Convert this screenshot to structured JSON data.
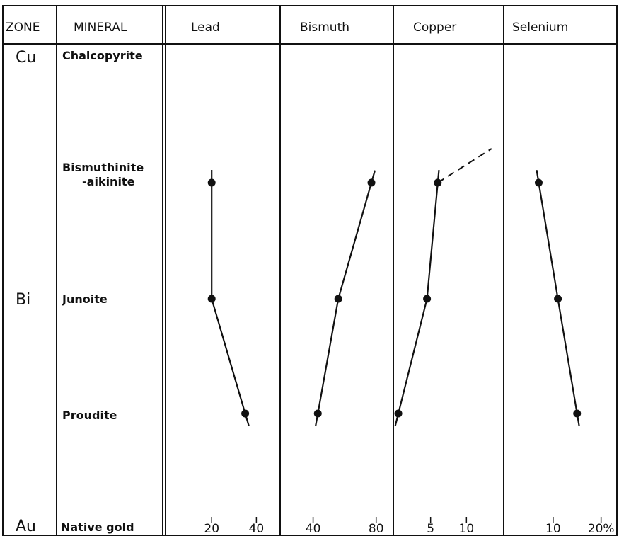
{
  "headers": {
    "zone": "ZONE",
    "mineral": "MINERAL",
    "panels": [
      "Lead",
      "Bismuth",
      "Copper",
      "Selenium"
    ]
  },
  "zones": [
    "Cu",
    "Bi",
    "Au"
  ],
  "minerals": [
    "Chalcopyrite",
    "Bismuthinite",
    "-aikinite",
    "Junoite",
    "Proudite",
    "Native gold"
  ],
  "chart_data": [
    {
      "type": "line",
      "panel": "Lead",
      "categories": [
        "Bismuthinite-aikinite",
        "Junoite",
        "Proudite"
      ],
      "values": [
        20,
        20,
        35
      ],
      "xlim": [
        0,
        50
      ],
      "xticks": [
        20,
        40
      ],
      "xtick_labels": [
        "20",
        "40"
      ]
    },
    {
      "type": "line",
      "panel": "Bismuth",
      "categories": [
        "Bismuthinite-aikinite",
        "Junoite",
        "Proudite"
      ],
      "values": [
        77,
        56,
        43
      ],
      "xlim": [
        20,
        90
      ],
      "xticks": [
        40,
        80
      ],
      "xtick_labels": [
        "40",
        "80"
      ]
    },
    {
      "type": "line",
      "panel": "Copper",
      "categories": [
        "Bismuthinite-aikinite",
        "Junoite",
        "Proudite"
      ],
      "values": [
        6,
        4.5,
        0.5
      ],
      "xlim": [
        0,
        15
      ],
      "xticks": [
        5,
        10
      ],
      "xtick_labels": [
        "5",
        "10"
      ],
      "dashed_extension": "toward Chalcopyrite"
    },
    {
      "type": "line",
      "panel": "Selenium",
      "categories": [
        "Bismuthinite-aikinite",
        "Junoite",
        "Proudite"
      ],
      "values": [
        7,
        11,
        15
      ],
      "xlim": [
        0,
        23
      ],
      "xticks": [
        10,
        20
      ],
      "xtick_labels": [
        "10",
        "20%"
      ]
    }
  ]
}
